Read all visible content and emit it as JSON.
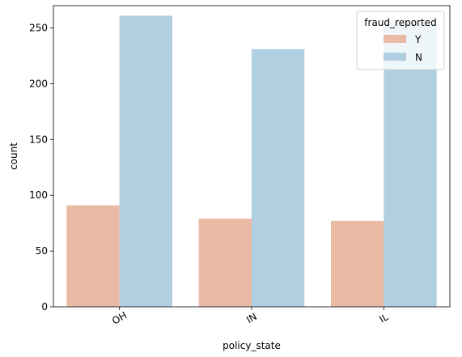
{
  "chart_data": {
    "type": "bar",
    "xlabel": "policy_state",
    "ylabel": "count",
    "categories": [
      "OH",
      "IN",
      "IL"
    ],
    "series": [
      {
        "name": "Y",
        "color": "#ebbaa5",
        "values": [
          91,
          79,
          77
        ]
      },
      {
        "name": "N",
        "color": "#b0cfe1",
        "values": [
          261,
          231,
          255
        ]
      }
    ],
    "ylim": [
      0,
      270
    ],
    "yticks": [
      0,
      50,
      100,
      150,
      200,
      250
    ],
    "ytick_labels": [
      "0",
      "50",
      "100",
      "150",
      "200",
      "250"
    ],
    "legend": {
      "title": "fraud_reported",
      "placement": "top-right"
    },
    "grid": false
  }
}
